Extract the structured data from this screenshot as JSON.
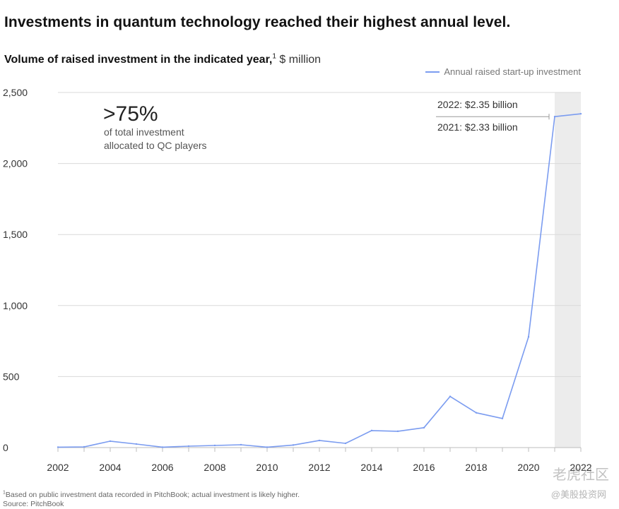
{
  "headline": "Investments in quantum technology reached their highest annual level.",
  "subtitle": {
    "bold": "Volume of raised investment in the indicated year,",
    "sup": "1",
    "unit": " $ million"
  },
  "legend_label": "Annual raised start-up investment",
  "callout": {
    "big": ">75%",
    "line1": "of total investment",
    "line2": "allocated to QC players"
  },
  "annotations": {
    "a2022": "2022:  $2.35 billion",
    "a2021": "2021:  $2.33 billion"
  },
  "footnote": {
    "sup": "1",
    "line1": "Based on public investment data recorded in PitchBook; actual investment is likely higher.",
    "line2": "Source: PitchBook"
  },
  "watermark": {
    "line1": "老虎社区",
    "line2": "@美股投资网"
  },
  "colors": {
    "line": "#7b9cf0",
    "grid": "#d9d9d9",
    "highlight": "#ececec",
    "axis_text": "#333333"
  },
  "chart_data": {
    "type": "line",
    "title": "Volume of raised investment in the indicated year",
    "ylabel": "$ million",
    "xlabel": "",
    "x": [
      2002,
      2003,
      2004,
      2005,
      2006,
      2007,
      2008,
      2009,
      2010,
      2011,
      2012,
      2013,
      2014,
      2015,
      2016,
      2017,
      2018,
      2019,
      2020,
      2021,
      2022
    ],
    "series": [
      {
        "name": "Annual raised start-up investment",
        "values": [
          3,
          5,
          45,
          25,
          3,
          10,
          15,
          20,
          3,
          18,
          50,
          30,
          120,
          115,
          140,
          360,
          245,
          205,
          780,
          2330,
          2350
        ]
      }
    ],
    "xlim": [
      2002,
      2022
    ],
    "ylim": [
      0,
      2500
    ],
    "x_ticks": [
      "2002",
      "2004",
      "2006",
      "2008",
      "2010",
      "2012",
      "2014",
      "2016",
      "2018",
      "2020",
      "2022"
    ],
    "y_ticks": [
      "0",
      "500",
      "1,000",
      "1,500",
      "2,000",
      "2,500"
    ],
    "highlight_range": [
      2021,
      2022
    ],
    "grid": true,
    "legend_position": "top-right"
  }
}
